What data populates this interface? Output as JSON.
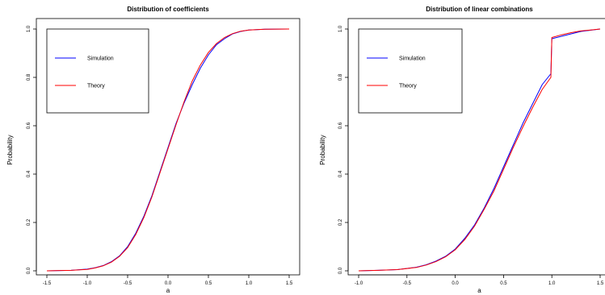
{
  "colors": {
    "simulation": "#0000ff",
    "theory": "#ff0000",
    "axis": "#000000"
  },
  "chart_data": [
    {
      "type": "line",
      "title": "Distribution of coefficients",
      "xlabel": "a",
      "ylabel": "Probability",
      "xlim": [
        -1.5,
        1.5
      ],
      "ylim": [
        0,
        1
      ],
      "xticks": [
        -1.5,
        -1.0,
        -0.5,
        0.0,
        0.5,
        1.0,
        1.5
      ],
      "xtick_labels": [
        "-1.5",
        "-1.0",
        "-0.5",
        "0.0",
        "0.5",
        "1.0",
        "1.5"
      ],
      "yticks": [
        0,
        0.2,
        0.4,
        0.6,
        0.8,
        1.0
      ],
      "ytick_labels": [
        "0.0",
        "0.2",
        "0.4",
        "0.6",
        "0.8",
        "1.0"
      ],
      "grid": false,
      "legend_position": "top-left",
      "series": [
        {
          "name": "Simulation",
          "color": "#0000ff",
          "x": [
            -1.5,
            -1.2,
            -1.0,
            -0.9,
            -0.8,
            -0.7,
            -0.6,
            -0.5,
            -0.4,
            -0.3,
            -0.2,
            -0.1,
            0.0,
            0.1,
            0.2,
            0.3,
            0.4,
            0.5,
            0.6,
            0.7,
            0.8,
            0.9,
            1.0,
            1.2,
            1.5
          ],
          "y": [
            0.0,
            0.002,
            0.007,
            0.013,
            0.022,
            0.038,
            0.062,
            0.1,
            0.155,
            0.225,
            0.31,
            0.41,
            0.51,
            0.61,
            0.695,
            0.77,
            0.838,
            0.893,
            0.935,
            0.96,
            0.98,
            0.99,
            0.996,
            0.999,
            1.0
          ]
        },
        {
          "name": "Theory",
          "color": "#ff0000",
          "x": [
            -1.5,
            -1.2,
            -1.0,
            -0.9,
            -0.8,
            -0.7,
            -0.6,
            -0.5,
            -0.4,
            -0.3,
            -0.2,
            -0.1,
            0.0,
            0.1,
            0.2,
            0.3,
            0.4,
            0.5,
            0.6,
            0.7,
            0.8,
            0.9,
            1.0,
            1.2,
            1.5
          ],
          "y": [
            0.0,
            0.002,
            0.006,
            0.012,
            0.021,
            0.036,
            0.06,
            0.096,
            0.15,
            0.22,
            0.305,
            0.405,
            0.505,
            0.605,
            0.7,
            0.785,
            0.851,
            0.903,
            0.94,
            0.965,
            0.981,
            0.991,
            0.996,
            0.999,
            1.0
          ]
        }
      ]
    },
    {
      "type": "line",
      "title": "Distribution of linear combinations",
      "xlabel": "a",
      "ylabel": "Probability",
      "xlim": [
        -1.0,
        1.5
      ],
      "ylim": [
        0,
        1
      ],
      "xticks": [
        -1.0,
        -0.5,
        0.0,
        0.5,
        1.0,
        1.5
      ],
      "xtick_labels": [
        "-1.0",
        "-0.5",
        "0.0",
        "0.5",
        "1.0",
        "1.5"
      ],
      "yticks": [
        0,
        0.2,
        0.4,
        0.6,
        0.8,
        1.0
      ],
      "ytick_labels": [
        "0.0",
        "0.2",
        "0.4",
        "0.6",
        "0.8",
        "1.0"
      ],
      "grid": false,
      "legend_position": "top-left",
      "series": [
        {
          "name": "Simulation",
          "color": "#0000ff",
          "x": [
            -1.0,
            -0.8,
            -0.6,
            -0.4,
            -0.3,
            -0.2,
            -0.1,
            0.0,
            0.1,
            0.2,
            0.3,
            0.4,
            0.5,
            0.6,
            0.7,
            0.8,
            0.9,
            0.99,
            1.0,
            1.1,
            1.2,
            1.3,
            1.4,
            1.5
          ],
          "y": [
            0.0,
            0.002,
            0.005,
            0.015,
            0.025,
            0.04,
            0.06,
            0.09,
            0.135,
            0.19,
            0.26,
            0.34,
            0.43,
            0.52,
            0.61,
            0.69,
            0.77,
            0.815,
            0.96,
            0.97,
            0.98,
            0.99,
            0.995,
            1.0
          ]
        },
        {
          "name": "Theory",
          "color": "#ff0000",
          "x": [
            -1.0,
            -0.8,
            -0.6,
            -0.4,
            -0.3,
            -0.2,
            -0.1,
            0.0,
            0.1,
            0.2,
            0.3,
            0.4,
            0.5,
            0.6,
            0.7,
            0.8,
            0.9,
            0.99,
            1.0,
            1.1,
            1.2,
            1.3,
            1.4,
            1.5
          ],
          "y": [
            0.0,
            0.002,
            0.005,
            0.014,
            0.024,
            0.038,
            0.058,
            0.087,
            0.13,
            0.185,
            0.255,
            0.33,
            0.42,
            0.51,
            0.595,
            0.675,
            0.75,
            0.8,
            0.965,
            0.976,
            0.985,
            0.992,
            0.996,
            1.0
          ]
        }
      ]
    }
  ]
}
